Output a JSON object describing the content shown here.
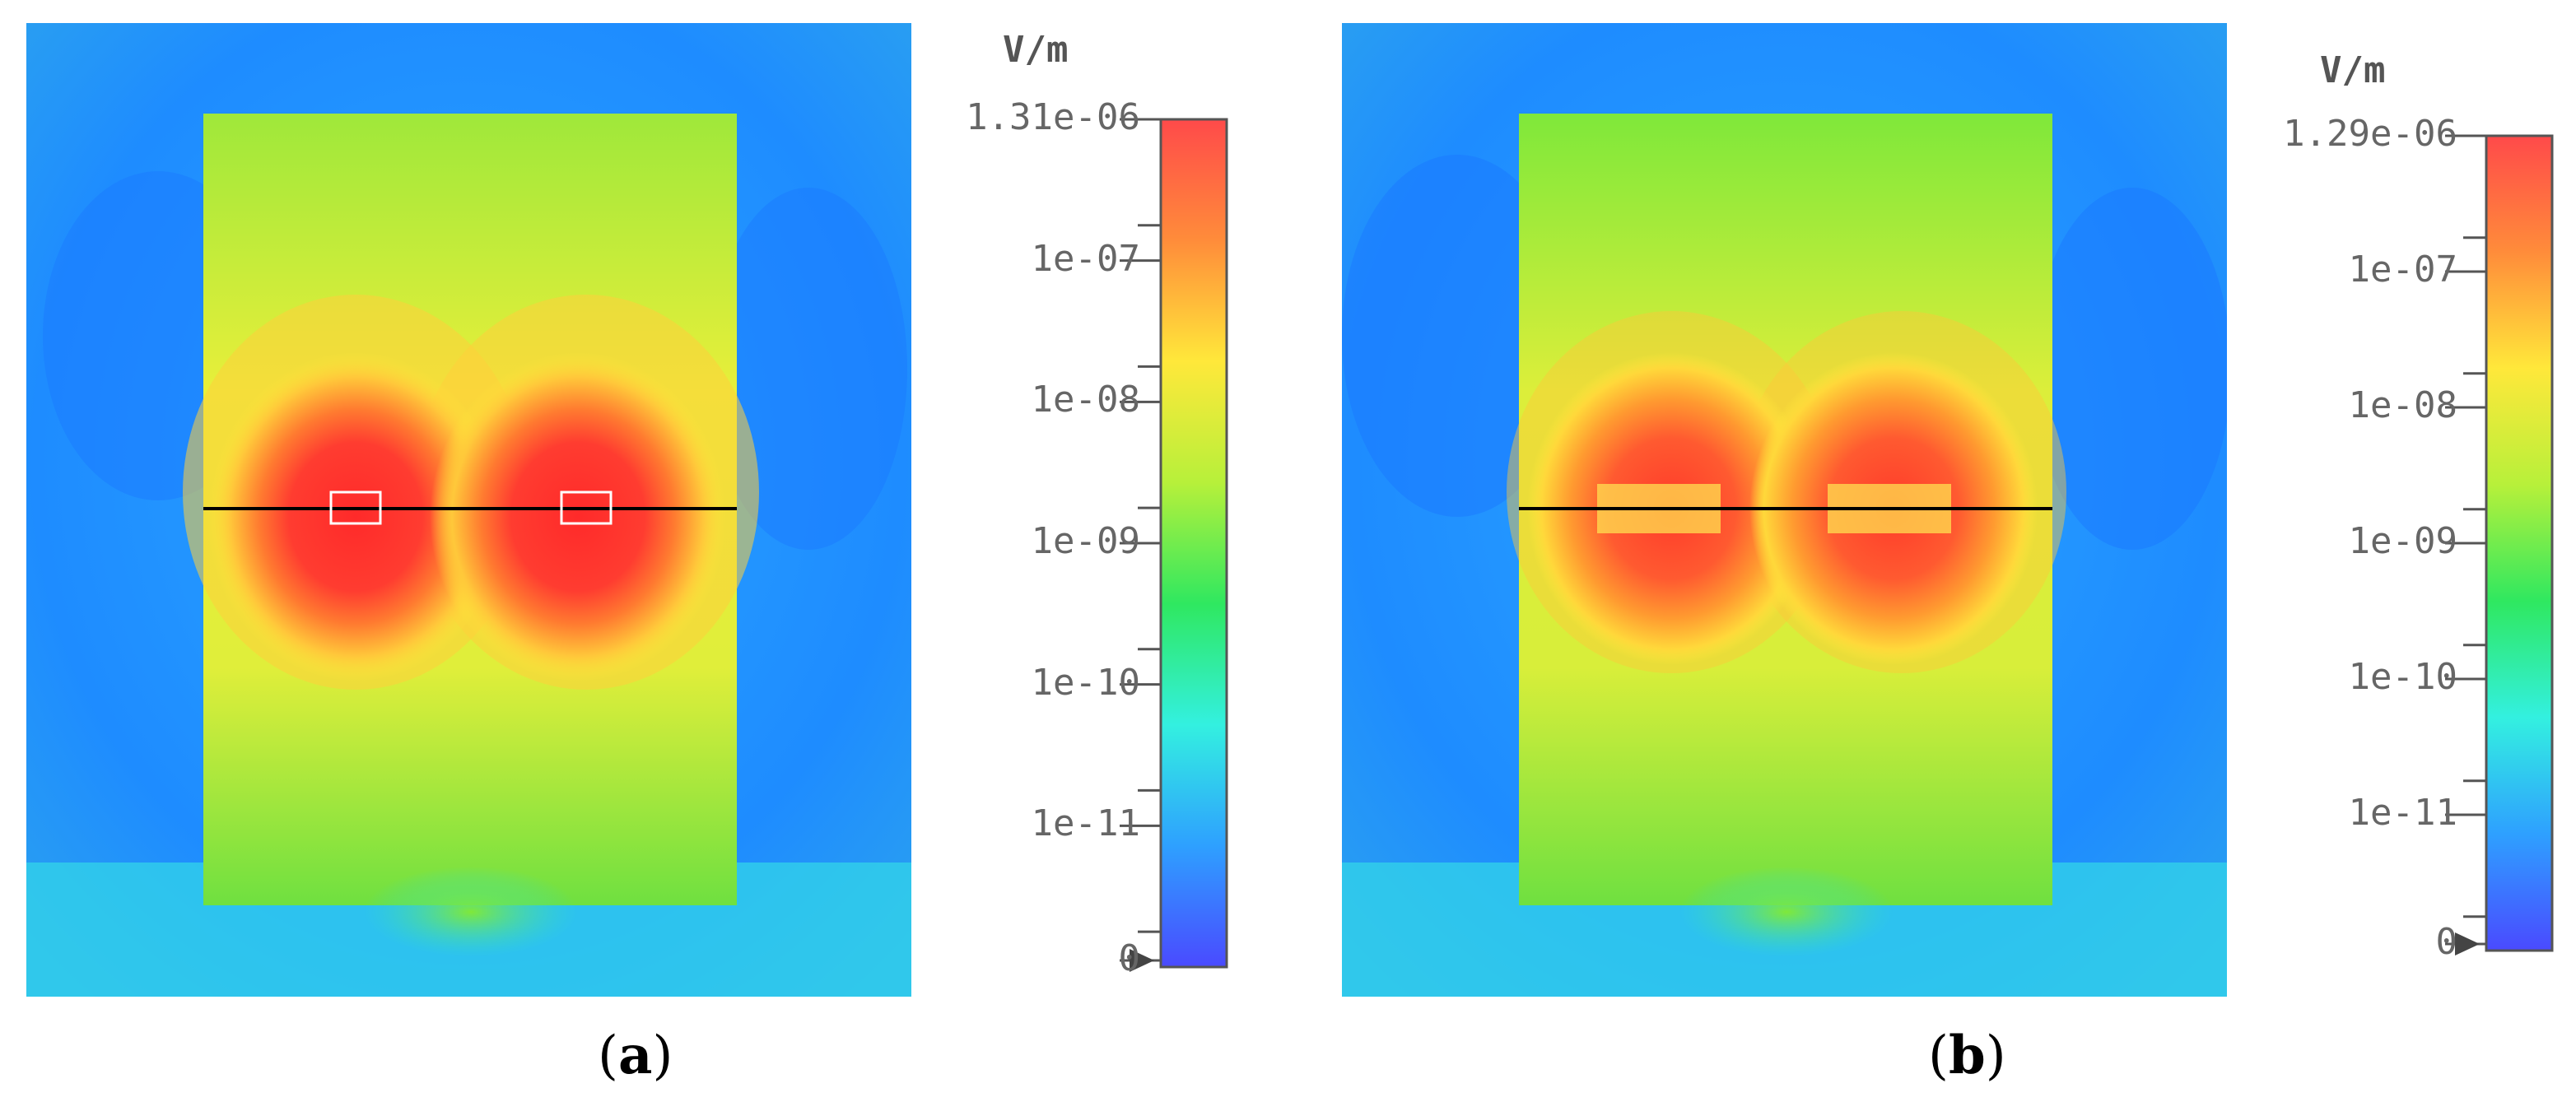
{
  "panels": [
    {
      "id": "a",
      "caption_open": "(",
      "caption_letter": "a",
      "caption_close": ")",
      "colorbar": {
        "unit": "V/m",
        "ticks": [
          "1.31e-06",
          "1e-07",
          "1e-08",
          "1e-09",
          "1e-10",
          "1e-11",
          "0"
        ],
        "colors": [
          "#ff4a4a",
          "#ff8c3a",
          "#ffe83a",
          "#b7f03a",
          "#2fe860",
          "#33f0e0",
          "#2ea0ff",
          "#4a4aff"
        ]
      }
    },
    {
      "id": "b",
      "caption_open": "(",
      "caption_letter": "b",
      "caption_close": ")",
      "colorbar": {
        "unit": "V/m",
        "ticks": [
          "1.29e-06",
          "1e-07",
          "1e-08",
          "1e-09",
          "1e-10",
          "1e-11",
          "0"
        ],
        "colors": [
          "#ff4a4a",
          "#ff8c3a",
          "#ffe83a",
          "#b7f03a",
          "#2fe860",
          "#33f0e0",
          "#2ea0ff",
          "#4a4aff"
        ]
      }
    }
  ]
}
